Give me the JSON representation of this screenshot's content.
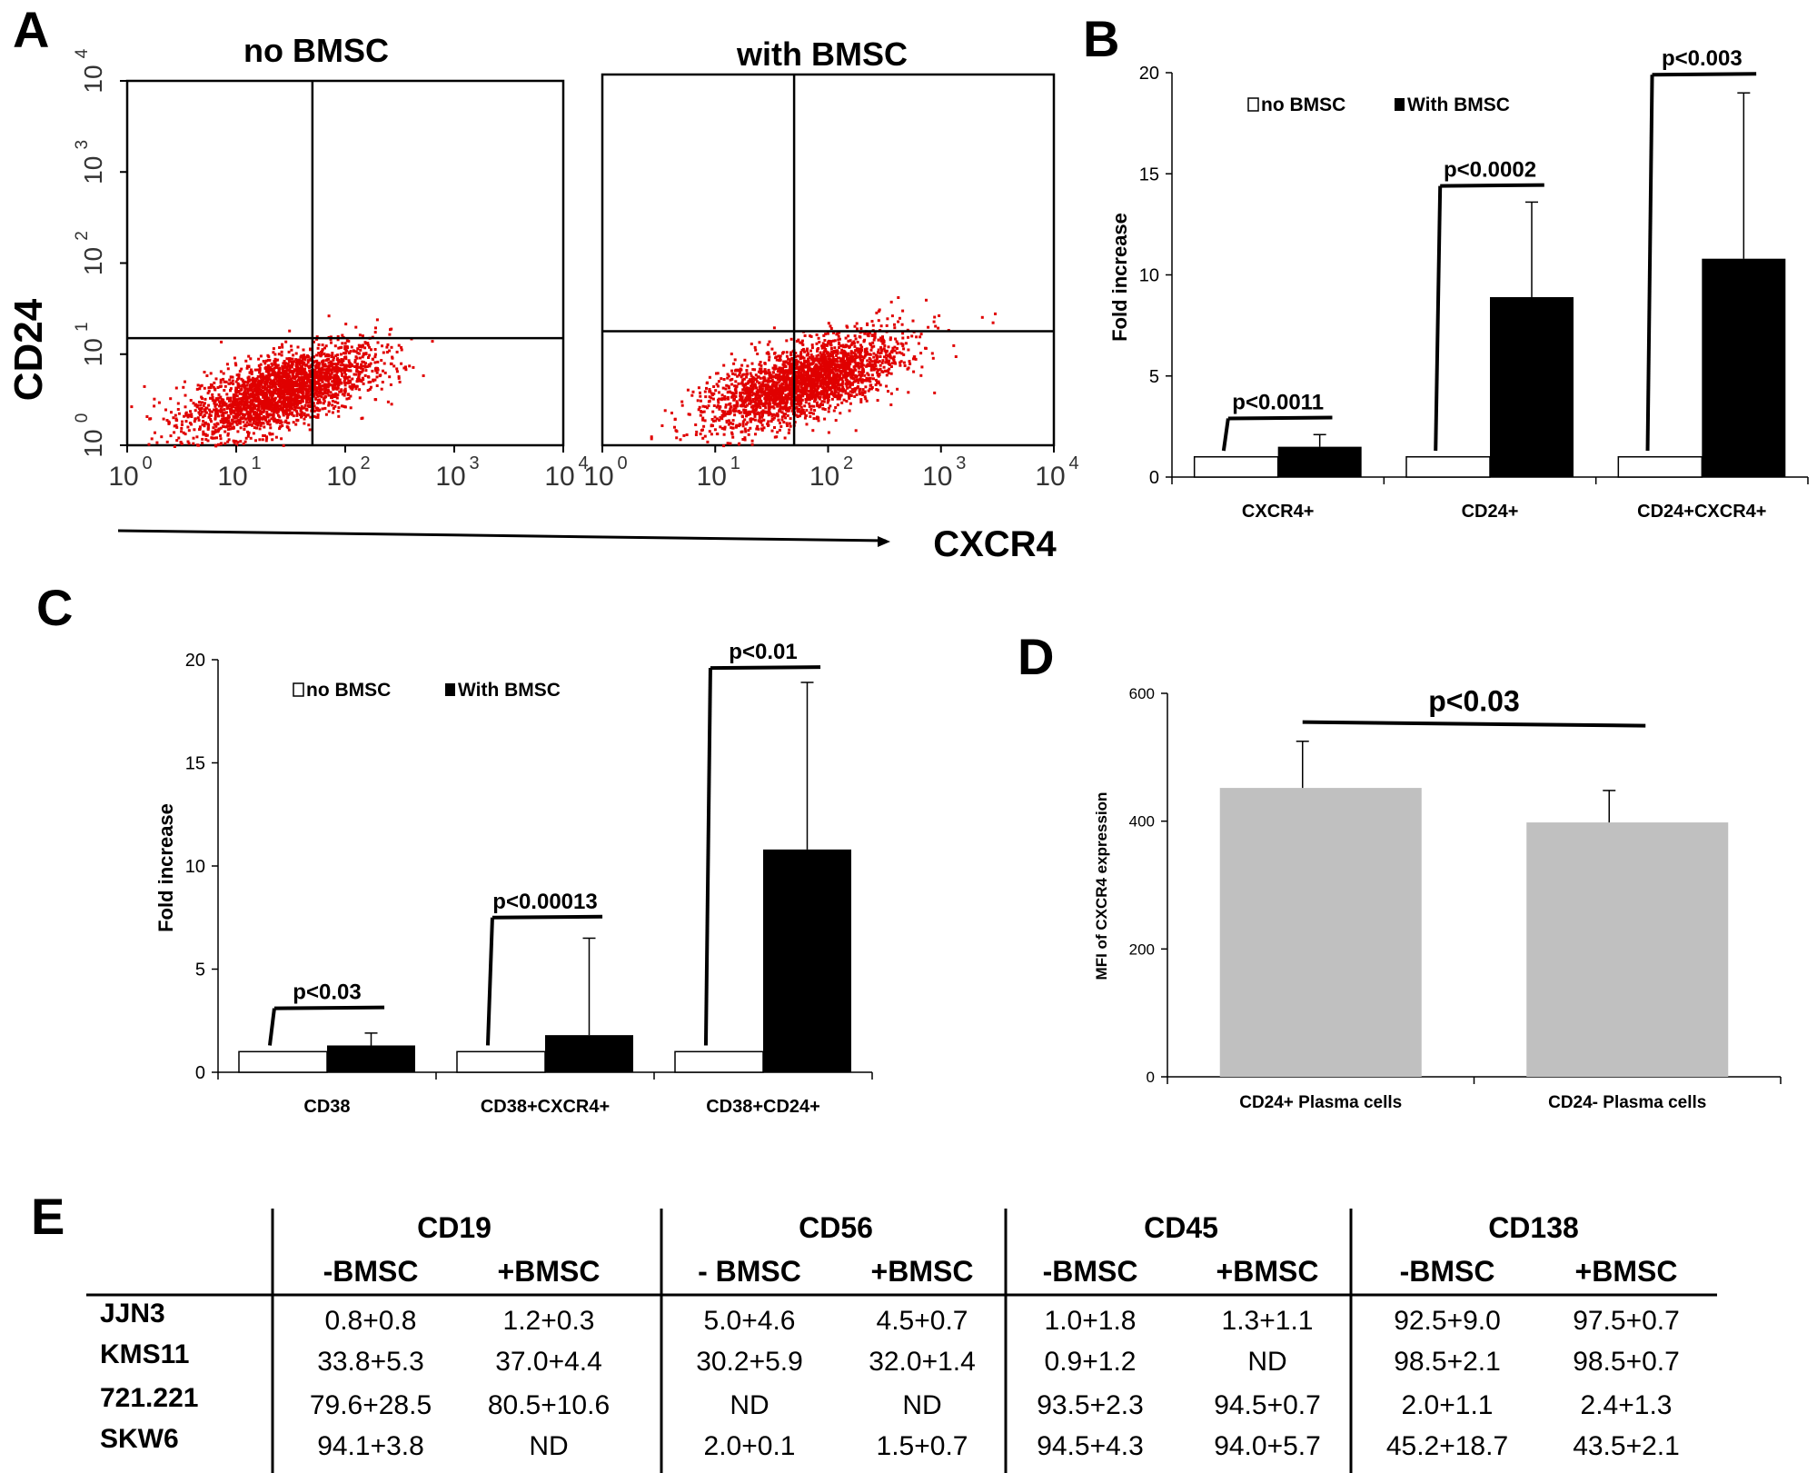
{
  "panel_labels": {
    "a": "A",
    "b": "B",
    "c": "C",
    "d": "D",
    "e": "E"
  },
  "colors": {
    "dot": "#e00000",
    "grey_bar": "#c0c0c0",
    "black": "#000000",
    "white": "#ffffff"
  },
  "chart_data": [
    {
      "panel": "A",
      "type": "scatter",
      "title_left": "no BMSC",
      "title_right": "with BMSC",
      "xlabel": "CXCR4",
      "ylabel": "CD24",
      "x_ticks": [
        "10",
        "10",
        "10",
        "10",
        "10"
      ],
      "x_tick_exponents": [
        "0",
        "1",
        "2",
        "3",
        "4"
      ],
      "y_ticks": [
        "10",
        "10",
        "10",
        "10",
        "10"
      ],
      "y_tick_exponents": [
        "0",
        "1",
        "2",
        "3",
        "4"
      ],
      "scale": "log",
      "xlim": [
        1,
        10000
      ],
      "ylim": [
        1,
        10000
      ],
      "plots": [
        {
          "name": "no BMSC",
          "gate_x": 50,
          "gate_y": 15,
          "cloud_center_x": 25,
          "cloud_center_y": 4
        },
        {
          "name": "with BMSC",
          "gate_x": 50,
          "gate_y": 17,
          "cloud_center_x": 60,
          "cloud_center_y": 5
        }
      ]
    },
    {
      "panel": "B",
      "type": "bar",
      "ylabel": "Fold increase",
      "ylim": [
        0,
        20
      ],
      "y_ticks": [
        "0",
        "5",
        "10",
        "15",
        "20"
      ],
      "categories": [
        "CXCR4+",
        "CD24+",
        "CD24+CXCR4+"
      ],
      "legend": [
        {
          "label": "no BMSC",
          "swatch": "white"
        },
        {
          "label": "With BMSC",
          "swatch": "black"
        }
      ],
      "series": [
        {
          "name": "no BMSC",
          "values": [
            1.0,
            1.0,
            1.0
          ]
        },
        {
          "name": "With BMSC",
          "values": [
            1.5,
            8.9,
            10.8
          ],
          "error": [
            0.6,
            4.7,
            8.2
          ]
        }
      ],
      "pvalues": [
        "p<0.0011",
        "p<0.0002",
        "p<0.003"
      ],
      "bracket_heights": [
        2.9,
        14.4,
        19.9
      ]
    },
    {
      "panel": "C",
      "type": "bar",
      "ylabel": "Fold increase",
      "ylim": [
        0,
        20
      ],
      "y_ticks": [
        "0",
        "5",
        "10",
        "15",
        "20"
      ],
      "categories": [
        "CD38",
        "CD38+CXCR4+",
        "CD38+CD24+"
      ],
      "legend": [
        {
          "label": "no BMSC",
          "swatch": "white"
        },
        {
          "label": "With BMSC",
          "swatch": "black"
        }
      ],
      "series": [
        {
          "name": "no BMSC",
          "values": [
            1.0,
            1.0,
            1.0
          ]
        },
        {
          "name": "With BMSC",
          "values": [
            1.3,
            1.8,
            10.8
          ],
          "error": [
            0.6,
            4.7,
            8.1
          ]
        }
      ],
      "pvalues": [
        "p<0.03",
        "p<0.00013",
        "p<0.01"
      ],
      "bracket_heights": [
        3.1,
        7.5,
        19.6
      ]
    },
    {
      "panel": "D",
      "type": "bar",
      "ylabel": "MFI of CXCR4 expression",
      "ylim": [
        0,
        600
      ],
      "y_ticks": [
        "0",
        "200",
        "400",
        "600"
      ],
      "categories": [
        "CD24+ Plasma cells",
        "CD24- Plasma cells"
      ],
      "values": [
        452,
        398
      ],
      "error": [
        73,
        50
      ],
      "pvalue": "p<0.03",
      "bracket_height": 555
    },
    {
      "panel": "E",
      "type": "table",
      "groups": [
        "CD19",
        "CD56",
        "CD45",
        "CD138"
      ],
      "subheaders": [
        "-BMSC",
        "+BMSC",
        "- BMSC",
        "+BMSC",
        "-BMSC",
        "+BMSC",
        "-BMSC",
        "+BMSC"
      ],
      "rows": [
        {
          "label": "JJN3",
          "cells": [
            "0.8+0.8",
            "1.2+0.3",
            "5.0+4.6",
            "4.5+0.7",
            "1.0+1.8",
            "1.3+1.1",
            "92.5+9.0",
            "97.5+0.7"
          ]
        },
        {
          "label": "KMS11",
          "cells": [
            "33.8+5.3",
            "37.0+4.4",
            "30.2+5.9",
            "32.0+1.4",
            "0.9+1.2",
            "ND",
            "98.5+2.1",
            "98.5+0.7"
          ]
        },
        {
          "label": "721.221",
          "cells": [
            "79.6+28.5",
            "80.5+10.6",
            "ND",
            "ND",
            "93.5+2.3",
            "94.5+0.7",
            "2.0+1.1",
            "2.4+1.3"
          ]
        },
        {
          "label": "SKW6",
          "cells": [
            "94.1+3.8",
            "ND",
            "2.0+0.1",
            "1.5+0.7",
            "94.5+4.3",
            "94.0+5.7",
            "45.2+18.7",
            "43.5+2.1"
          ]
        }
      ]
    }
  ]
}
